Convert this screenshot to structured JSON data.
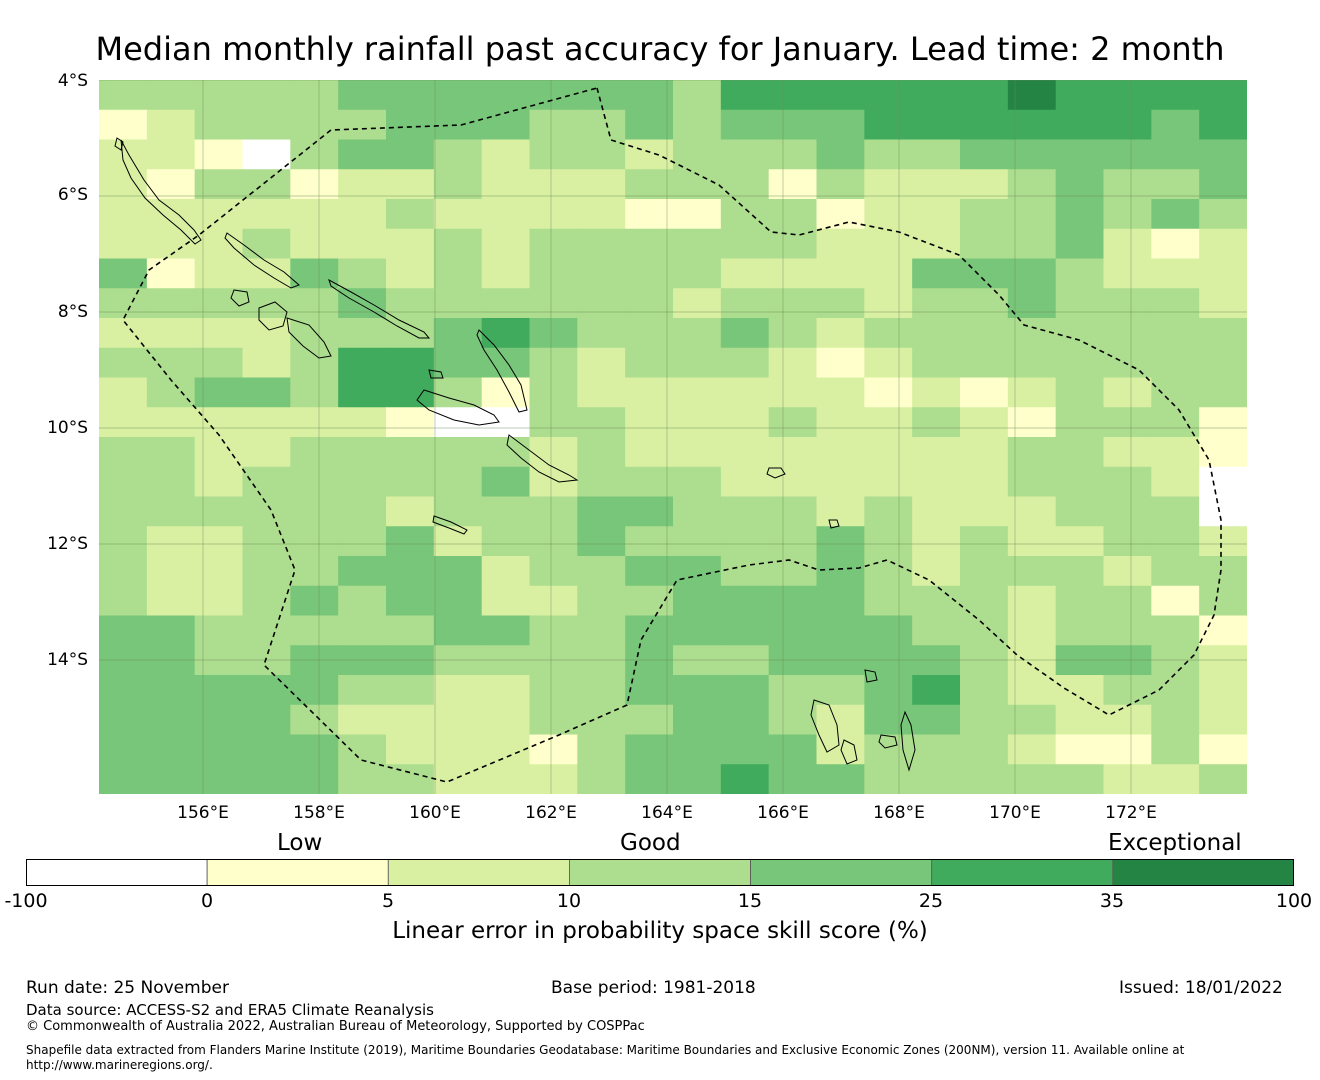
{
  "title": "Median monthly rainfall past accuracy for January. Lead time: 2 month",
  "map": {
    "lat_labels": [
      "4°S",
      "6°S",
      "8°S",
      "10°S",
      "12°S",
      "14°S"
    ],
    "lon_labels": [
      "156°E",
      "158°E",
      "160°E",
      "162°E",
      "164°E",
      "166°E",
      "168°E",
      "170°E",
      "172°E"
    ],
    "lon_range": [
      154.2,
      174.0
    ],
    "lat_range": [
      -4.0,
      -16.3
    ],
    "features": [
      "Solomon Islands",
      "Vanuatu",
      "EEZ boundary"
    ],
    "grid_skill_bins": [
      [
        3,
        3,
        3,
        3,
        3,
        4,
        4,
        4,
        4,
        4,
        4,
        4,
        3,
        5,
        5,
        5,
        5,
        5,
        5,
        6,
        5,
        5,
        5,
        5
      ],
      [
        1,
        2,
        3,
        3,
        3,
        3,
        4,
        4,
        4,
        3,
        3,
        4,
        3,
        4,
        4,
        4,
        5,
        5,
        5,
        5,
        5,
        5,
        4,
        5
      ],
      [
        2,
        2,
        1,
        0,
        3,
        4,
        4,
        3,
        2,
        3,
        3,
        2,
        3,
        3,
        3,
        4,
        3,
        3,
        4,
        4,
        4,
        4,
        4,
        4
      ],
      [
        2,
        1,
        3,
        3,
        1,
        2,
        2,
        3,
        2,
        2,
        2,
        3,
        3,
        3,
        1,
        3,
        2,
        2,
        2,
        3,
        4,
        3,
        3,
        4
      ],
      [
        2,
        2,
        2,
        2,
        2,
        2,
        3,
        2,
        2,
        2,
        2,
        1,
        1,
        3,
        3,
        1,
        2,
        2,
        3,
        3,
        4,
        3,
        4,
        3
      ],
      [
        2,
        2,
        2,
        3,
        2,
        2,
        2,
        3,
        2,
        3,
        3,
        3,
        3,
        3,
        3,
        2,
        2,
        2,
        3,
        3,
        4,
        2,
        1,
        2
      ],
      [
        4,
        1,
        2,
        2,
        4,
        3,
        2,
        3,
        2,
        3,
        3,
        3,
        3,
        2,
        2,
        2,
        2,
        4,
        4,
        4,
        3,
        2,
        2,
        2
      ],
      [
        3,
        3,
        3,
        3,
        3,
        4,
        3,
        3,
        3,
        3,
        3,
        3,
        2,
        3,
        3,
        3,
        2,
        3,
        3,
        4,
        3,
        3,
        3,
        2
      ],
      [
        2,
        2,
        2,
        2,
        3,
        3,
        3,
        4,
        5,
        4,
        3,
        3,
        3,
        4,
        3,
        2,
        3,
        3,
        3,
        3,
        3,
        3,
        3,
        3
      ],
      [
        3,
        3,
        3,
        2,
        3,
        5,
        5,
        4,
        4,
        3,
        2,
        3,
        3,
        3,
        2,
        1,
        2,
        3,
        3,
        3,
        3,
        3,
        3,
        3
      ],
      [
        2,
        3,
        4,
        4,
        3,
        5,
        5,
        3,
        1,
        3,
        2,
        2,
        2,
        2,
        2,
        2,
        1,
        2,
        1,
        2,
        3,
        2,
        3,
        3
      ],
      [
        2,
        2,
        2,
        2,
        2,
        2,
        1,
        0,
        0,
        3,
        3,
        2,
        2,
        2,
        3,
        2,
        2,
        3,
        2,
        1,
        3,
        3,
        3,
        1
      ],
      [
        3,
        3,
        2,
        2,
        3,
        3,
        3,
        3,
        3,
        2,
        3,
        2,
        2,
        2,
        2,
        2,
        2,
        2,
        2,
        3,
        3,
        2,
        2,
        1
      ],
      [
        3,
        3,
        2,
        3,
        3,
        3,
        3,
        3,
        4,
        2,
        3,
        3,
        3,
        2,
        2,
        2,
        2,
        2,
        2,
        3,
        3,
        3,
        2,
        0
      ],
      [
        3,
        3,
        3,
        3,
        3,
        3,
        2,
        3,
        3,
        3,
        4,
        4,
        3,
        3,
        3,
        2,
        3,
        2,
        2,
        2,
        3,
        3,
        3,
        0
      ],
      [
        3,
        2,
        2,
        3,
        3,
        3,
        4,
        2,
        3,
        3,
        4,
        3,
        3,
        3,
        3,
        4,
        3,
        2,
        3,
        2,
        2,
        3,
        3,
        2
      ],
      [
        3,
        2,
        2,
        3,
        3,
        4,
        4,
        4,
        2,
        3,
        3,
        4,
        4,
        3,
        3,
        4,
        3,
        2,
        3,
        3,
        3,
        2,
        3,
        3
      ],
      [
        3,
        2,
        2,
        3,
        4,
        3,
        4,
        4,
        2,
        2,
        3,
        3,
        4,
        4,
        4,
        4,
        3,
        3,
        3,
        2,
        3,
        3,
        1,
        3
      ],
      [
        4,
        4,
        3,
        3,
        3,
        3,
        3,
        4,
        4,
        3,
        3,
        4,
        4,
        4,
        4,
        4,
        4,
        3,
        3,
        2,
        3,
        3,
        3,
        1
      ],
      [
        4,
        4,
        3,
        3,
        4,
        4,
        4,
        3,
        3,
        3,
        3,
        4,
        3,
        3,
        4,
        4,
        4,
        4,
        3,
        2,
        4,
        4,
        3,
        2
      ],
      [
        4,
        4,
        4,
        4,
        4,
        3,
        3,
        2,
        2,
        3,
        3,
        4,
        4,
        4,
        3,
        3,
        4,
        5,
        3,
        2,
        2,
        3,
        3,
        2
      ],
      [
        4,
        4,
        4,
        4,
        3,
        2,
        2,
        2,
        2,
        3,
        3,
        3,
        4,
        4,
        3,
        2,
        4,
        4,
        3,
        3,
        2,
        2,
        3,
        2
      ],
      [
        4,
        4,
        4,
        4,
        4,
        3,
        2,
        2,
        2,
        1,
        3,
        4,
        4,
        4,
        4,
        2,
        3,
        3,
        3,
        2,
        1,
        1,
        3,
        1
      ],
      [
        4,
        4,
        4,
        4,
        4,
        3,
        3,
        2,
        2,
        2,
        3,
        4,
        4,
        5,
        4,
        4,
        3,
        3,
        3,
        3,
        3,
        2,
        2,
        3
      ]
    ]
  },
  "legend": {
    "categories": [
      "Low",
      "Good",
      "Exceptional"
    ],
    "ticks": [
      "-100",
      "0",
      "5",
      "10",
      "15",
      "25",
      "35",
      "100"
    ],
    "colors": [
      "#ffffff",
      "#ffffcc",
      "#d9f0a3",
      "#addd8e",
      "#78c679",
      "#41ab5d",
      "#238443"
    ],
    "label": "Linear error in probability space skill score (%)"
  },
  "footer": {
    "run_date": "Run date: 25 November",
    "base_period": "Base period: 1981-2018",
    "issued": "Issued: 18/01/2022",
    "data_source": "Data source: ACCESS-S2 and ERA5 Climate Reanalysis",
    "copyright": "© Commonwealth of Australia 2022, Australian Bureau of Meteorology, Supported by COSPPac",
    "shapefile_line1": "Shapefile data extracted from Flanders Marine Institute (2019), Maritime Boundaries Geodatabase: Maritime Boundaries and Exclusive Economic Zones (200NM), version 11. Available online at",
    "shapefile_line2": "http://www.marineregions.org/."
  }
}
